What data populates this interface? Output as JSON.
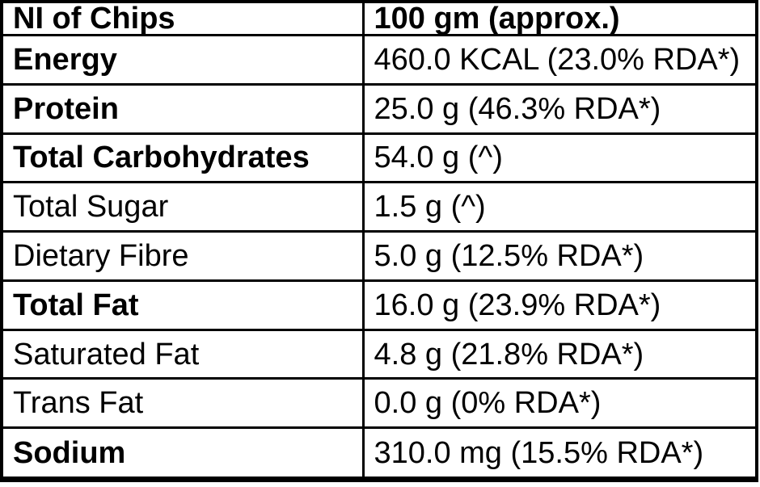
{
  "table": {
    "header": {
      "label": "NI of Chips",
      "value": "100 gm (approx.)"
    },
    "rows": [
      {
        "label": "Energy",
        "value": "460.0 KCAL (23.0% RDA*)",
        "bold": true
      },
      {
        "label": "Protein",
        "value": "25.0 g (46.3% RDA*)",
        "bold": true
      },
      {
        "label": "Total Carbohydrates",
        "value": "54.0 g (^)",
        "bold": true
      },
      {
        "label": "Total Sugar",
        "value": "1.5 g (^)",
        "bold": false
      },
      {
        "label": "Dietary Fibre",
        "value": "5.0 g (12.5% RDA*)",
        "bold": false
      },
      {
        "label": "Total Fat",
        "value": "16.0 g (23.9% RDA*)",
        "bold": true
      },
      {
        "label": "Saturated Fat",
        "value": "4.8 g (21.8% RDA*)",
        "bold": false
      },
      {
        "label": "Trans Fat",
        "value": "0.0 g (0% RDA*)",
        "bold": false
      },
      {
        "label": "Sodium",
        "value": "310.0 mg (15.5% RDA*)",
        "bold": true
      }
    ]
  },
  "colors": {
    "border": "#000000",
    "background": "#ffffff",
    "text": "#000000"
  }
}
